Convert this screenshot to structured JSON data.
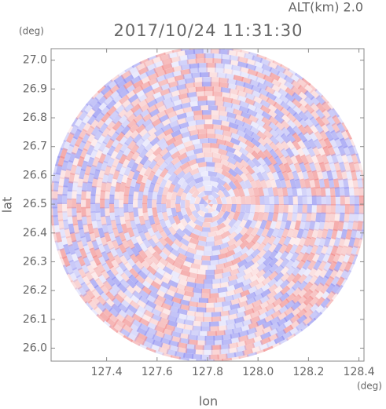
{
  "chart_data": {
    "type": "radar-ppi",
    "title": "2017/10/24 11:31:30",
    "subtitle": "ALT(km) 2.0",
    "x_label": "lon",
    "y_label": "lat",
    "x_unit": "(deg)",
    "y_unit": "(deg)",
    "xlim": [
      127.18,
      128.42
    ],
    "xticks": [
      {
        "value": 127.4,
        "label": "127.4"
      },
      {
        "value": 127.6,
        "label": "127.6"
      },
      {
        "value": 127.8,
        "label": "127.8"
      },
      {
        "value": 128.0,
        "label": "128.0"
      },
      {
        "value": 128.2,
        "label": "128.2"
      },
      {
        "value": 128.4,
        "label": "128.4"
      }
    ],
    "ylim": [
      25.955,
      27.04
    ],
    "yticks": [
      {
        "value": 26.0,
        "label": "26.0"
      },
      {
        "value": 26.1,
        "label": "26.1"
      },
      {
        "value": 26.2,
        "label": "26.2"
      },
      {
        "value": 26.3,
        "label": "26.3"
      },
      {
        "value": 26.4,
        "label": "26.4"
      },
      {
        "value": 26.5,
        "label": "26.5"
      },
      {
        "value": 26.6,
        "label": "26.6"
      },
      {
        "value": 26.7,
        "label": "26.7"
      },
      {
        "value": 26.8,
        "label": "26.8"
      },
      {
        "value": 26.9,
        "label": "26.9"
      },
      {
        "value": 27.0,
        "label": "27.0"
      }
    ]
  }
}
